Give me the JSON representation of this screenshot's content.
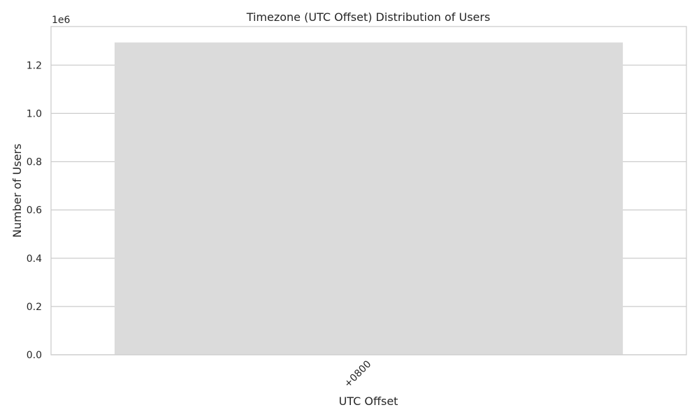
{
  "chart_data": {
    "type": "bar",
    "title": "Timezone (UTC Offset) Distribution of Users",
    "xlabel": "UTC Offset",
    "ylabel": "Number of Users",
    "y_offset_label": "1e6",
    "categories": [
      "+0800"
    ],
    "values": [
      1294000
    ],
    "ylim": [
      0,
      1360000
    ],
    "yticks": [
      0,
      200000,
      400000,
      600000,
      800000,
      1000000,
      1200000
    ],
    "ytick_labels": [
      "0.0",
      "0.2",
      "0.4",
      "0.6",
      "0.8",
      "1.0",
      "1.2"
    ],
    "grid": "horizontal",
    "bar_color": "#dbdbdb",
    "grid_color": "#cccccc",
    "x_tick_rotation": 45
  }
}
